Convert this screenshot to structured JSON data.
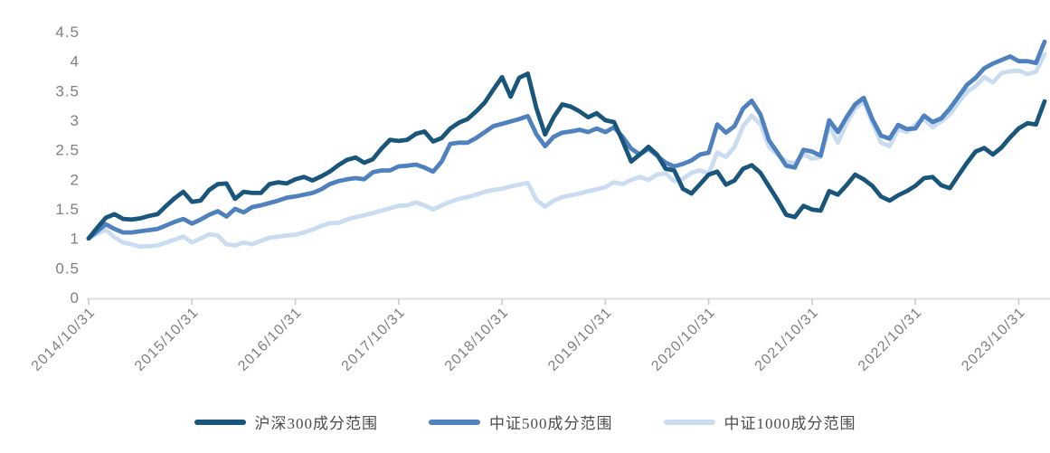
{
  "chart_data": {
    "type": "line",
    "grid": false,
    "legend_position": "bottom",
    "x_frequency": "monthly",
    "x_start_label": "2014/10/31",
    "ylim": [
      0,
      4.5
    ],
    "y_ticks": [
      {
        "value": 0,
        "label": "0"
      },
      {
        "value": 0.5,
        "label": "0.5"
      },
      {
        "value": 1,
        "label": "1"
      },
      {
        "value": 1.5,
        "label": "1.5"
      },
      {
        "value": 2,
        "label": "2"
      },
      {
        "value": 2.5,
        "label": "2.5"
      },
      {
        "value": 3,
        "label": "3"
      },
      {
        "value": 3.5,
        "label": "3.5"
      },
      {
        "value": 4,
        "label": "4"
      },
      {
        "value": 4.5,
        "label": "4.5"
      }
    ],
    "x_ticks": [
      {
        "index": 0,
        "label": "2014/10/31"
      },
      {
        "index": 12,
        "label": "2015/10/31"
      },
      {
        "index": 24,
        "label": "2016/10/31"
      },
      {
        "index": 36,
        "label": "2017/10/31"
      },
      {
        "index": 48,
        "label": "2018/10/31"
      },
      {
        "index": 60,
        "label": "2019/10/31"
      },
      {
        "index": 72,
        "label": "2020/10/31"
      },
      {
        "index": 84,
        "label": "2021/10/31"
      },
      {
        "index": 96,
        "label": "2022/10/31"
      },
      {
        "index": 108,
        "label": "2023/10/31"
      }
    ],
    "axis_color": "#dcdcdc",
    "tick_color": "#c9c9c9",
    "label_color": "#808080",
    "series": [
      {
        "name": "沪深300成分范围",
        "color": "#1a567c",
        "values": [
          1.0,
          1.18,
          1.35,
          1.41,
          1.33,
          1.32,
          1.34,
          1.38,
          1.41,
          1.55,
          1.68,
          1.79,
          1.62,
          1.64,
          1.82,
          1.92,
          1.93,
          1.67,
          1.79,
          1.77,
          1.77,
          1.92,
          1.95,
          1.93,
          2.0,
          2.04,
          1.98,
          2.05,
          2.13,
          2.24,
          2.33,
          2.37,
          2.28,
          2.34,
          2.52,
          2.67,
          2.65,
          2.67,
          2.77,
          2.81,
          2.64,
          2.7,
          2.86,
          2.96,
          3.02,
          3.15,
          3.3,
          3.52,
          3.73,
          3.4,
          3.72,
          3.79,
          3.2,
          2.76,
          3.05,
          3.27,
          3.23,
          3.15,
          3.05,
          3.12,
          3.0,
          2.97,
          2.65,
          2.3,
          2.42,
          2.55,
          2.42,
          2.18,
          2.15,
          1.84,
          1.76,
          1.92,
          2.08,
          2.13,
          1.91,
          1.98,
          2.18,
          2.24,
          2.11,
          1.88,
          1.65,
          1.4,
          1.36,
          1.55,
          1.49,
          1.47,
          1.8,
          1.74,
          1.9,
          2.08,
          2.0,
          1.89,
          1.71,
          1.64,
          1.73,
          1.8,
          1.89,
          2.02,
          2.04,
          1.9,
          1.85,
          2.07,
          2.28,
          2.47,
          2.53,
          2.42,
          2.54,
          2.71,
          2.86,
          2.95,
          2.93,
          3.32
        ]
      },
      {
        "name": "中证500成分范围",
        "color": "#4e81bd",
        "values": [
          1.0,
          1.12,
          1.24,
          1.16,
          1.1,
          1.1,
          1.12,
          1.14,
          1.16,
          1.22,
          1.28,
          1.33,
          1.25,
          1.32,
          1.4,
          1.46,
          1.37,
          1.5,
          1.44,
          1.53,
          1.56,
          1.6,
          1.64,
          1.69,
          1.71,
          1.74,
          1.77,
          1.83,
          1.92,
          1.97,
          2.0,
          2.02,
          2.0,
          2.12,
          2.15,
          2.15,
          2.22,
          2.23,
          2.25,
          2.2,
          2.13,
          2.3,
          2.6,
          2.62,
          2.62,
          2.7,
          2.8,
          2.9,
          2.94,
          2.98,
          3.02,
          3.07,
          2.76,
          2.56,
          2.72,
          2.79,
          2.81,
          2.84,
          2.8,
          2.86,
          2.8,
          2.88,
          2.72,
          2.52,
          2.42,
          2.52,
          2.4,
          2.28,
          2.22,
          2.26,
          2.32,
          2.42,
          2.45,
          2.93,
          2.79,
          2.9,
          3.2,
          3.33,
          3.1,
          2.66,
          2.45,
          2.23,
          2.2,
          2.5,
          2.47,
          2.4,
          3.0,
          2.8,
          3.05,
          3.27,
          3.38,
          3.02,
          2.74,
          2.69,
          2.92,
          2.85,
          2.86,
          3.08,
          2.97,
          3.03,
          3.2,
          3.4,
          3.6,
          3.72,
          3.88,
          3.96,
          4.02,
          4.08,
          4.0,
          4.0,
          3.97,
          4.33
        ]
      },
      {
        "name": "中证1000成分范围",
        "color": "#c9dcf0",
        "values": [
          1.0,
          1.08,
          1.15,
          1.02,
          0.93,
          0.9,
          0.86,
          0.87,
          0.88,
          0.93,
          0.98,
          1.03,
          0.93,
          1.0,
          1.07,
          1.05,
          0.9,
          0.88,
          0.93,
          0.9,
          0.96,
          1.01,
          1.03,
          1.05,
          1.06,
          1.1,
          1.15,
          1.21,
          1.26,
          1.26,
          1.32,
          1.36,
          1.39,
          1.43,
          1.47,
          1.51,
          1.55,
          1.56,
          1.61,
          1.56,
          1.49,
          1.56,
          1.62,
          1.67,
          1.7,
          1.74,
          1.79,
          1.82,
          1.84,
          1.88,
          1.91,
          1.94,
          1.65,
          1.54,
          1.64,
          1.7,
          1.73,
          1.76,
          1.8,
          1.83,
          1.87,
          1.95,
          1.92,
          1.99,
          2.04,
          1.99,
          2.08,
          2.1,
          1.97,
          2.01,
          2.11,
          2.15,
          2.1,
          2.45,
          2.38,
          2.55,
          2.9,
          3.08,
          2.93,
          2.55,
          2.42,
          2.3,
          2.27,
          2.43,
          2.35,
          2.38,
          2.9,
          2.62,
          2.95,
          3.2,
          3.32,
          2.96,
          2.62,
          2.56,
          2.85,
          2.8,
          2.93,
          3.02,
          2.88,
          2.98,
          3.1,
          3.3,
          3.48,
          3.58,
          3.73,
          3.64,
          3.8,
          3.83,
          3.84,
          3.78,
          3.82,
          4.12
        ]
      }
    ]
  }
}
